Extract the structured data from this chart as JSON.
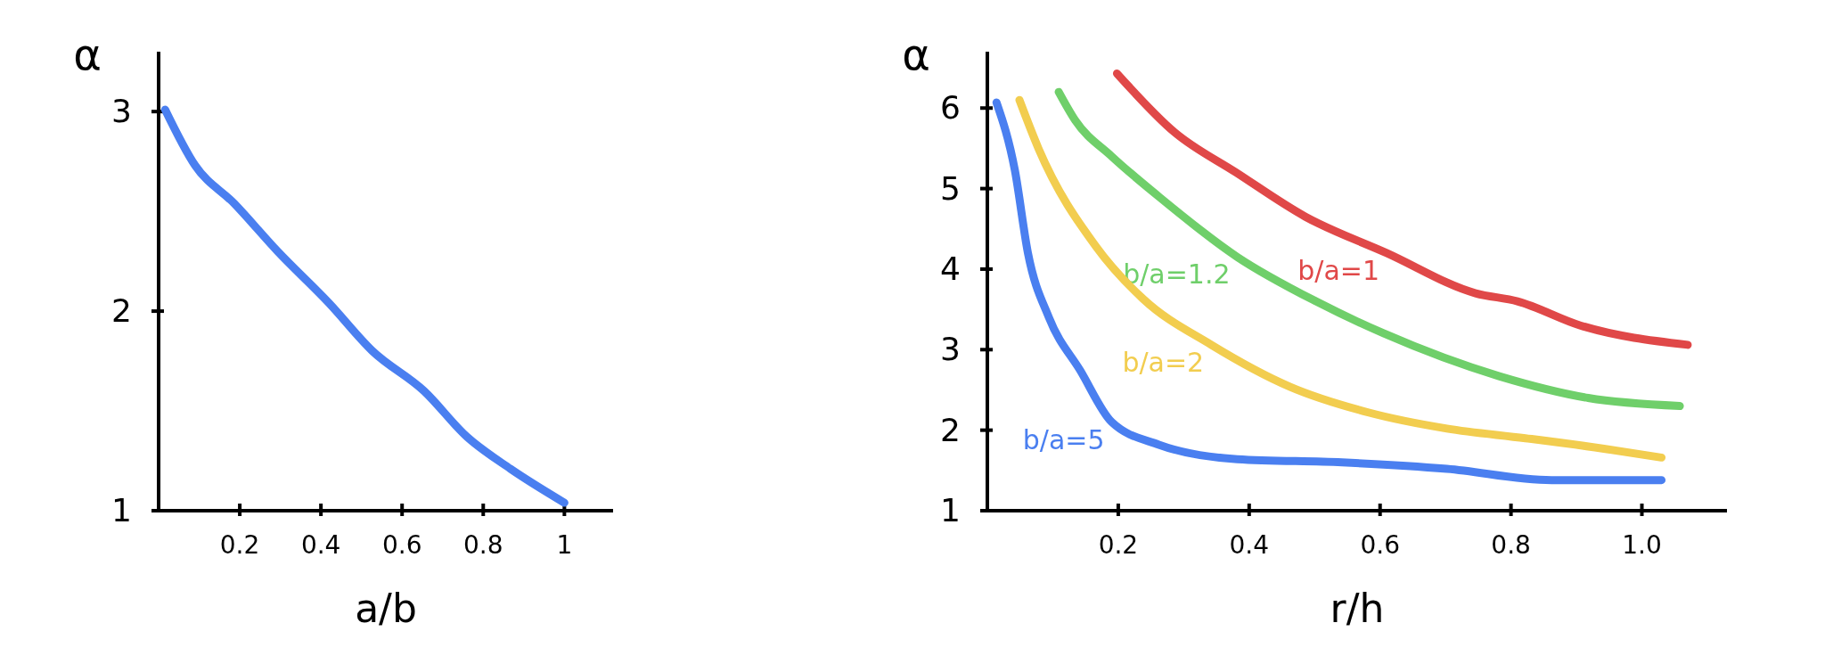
{
  "chart_data": [
    {
      "type": "line",
      "xlabel": "a/b",
      "ylabel": "α",
      "xlim": [
        0,
        1.12
      ],
      "ylim": [
        1,
        3.3
      ],
      "xticks": [
        0.2,
        0.4,
        0.6,
        0.8,
        1
      ],
      "yticks": [
        1,
        2,
        3
      ],
      "series": [
        {
          "color": "#4a7ff0",
          "x": [
            0.016,
            0.09,
            0.186,
            0.293,
            0.42,
            0.527,
            0.654,
            0.76,
            0.867,
            1.0
          ],
          "values": [
            3.01,
            2.73,
            2.54,
            2.3,
            2.04,
            1.8,
            1.6,
            1.37,
            1.21,
            1.04
          ]
        }
      ]
    },
    {
      "type": "line",
      "xlabel": "r/h",
      "ylabel": "α",
      "xlim": [
        0,
        1.13
      ],
      "ylim": [
        1,
        6.7
      ],
      "xticks": [
        0.2,
        0.4,
        0.6,
        0.8,
        {
          "value": 1,
          "label": "1.0"
        }
      ],
      "yticks": [
        1,
        2,
        3,
        4,
        5,
        6
      ],
      "series": [
        {
          "name": "b/a=1",
          "color": "#e04848",
          "x": [
            0.198,
            0.286,
            0.38,
            0.486,
            0.61,
            0.746,
            0.81,
            0.906,
            1.07
          ],
          "values": [
            6.43,
            5.7,
            5.2,
            4.65,
            4.2,
            3.7,
            3.6,
            3.3,
            3.06
          ]
        },
        {
          "name": "b/a=1.2",
          "color": "#6fcf6a",
          "x": [
            0.109,
            0.134,
            0.19,
            0.262,
            0.382,
            0.502,
            0.606,
            0.782,
            0.918,
            1.058
          ],
          "values": [
            6.2,
            5.85,
            5.4,
            4.9,
            4.15,
            3.6,
            3.2,
            2.67,
            2.4,
            2.3
          ]
        },
        {
          "name": "b/a=2",
          "color": "#f2cd4f",
          "x": [
            0.049,
            0.078,
            0.166,
            0.238,
            0.342,
            0.462,
            0.582,
            0.702,
            0.822,
            0.942,
            1.03
          ],
          "values": [
            6.1,
            5.5,
            4.28,
            3.63,
            3.06,
            2.54,
            2.22,
            2.02,
            1.9,
            1.77,
            1.66
          ]
        },
        {
          "name": "b/a=5",
          "color": "#4a7ff0",
          "x": [
            0.014,
            0.042,
            0.062,
            0.094,
            0.142,
            0.19,
            0.262,
            0.382,
            0.542,
            0.702,
            0.862,
            1.03
          ],
          "values": [
            6.07,
            5.23,
            4.2,
            3.4,
            2.74,
            2.1,
            1.82,
            1.64,
            1.6,
            1.52,
            1.38,
            1.38
          ]
        }
      ]
    }
  ]
}
